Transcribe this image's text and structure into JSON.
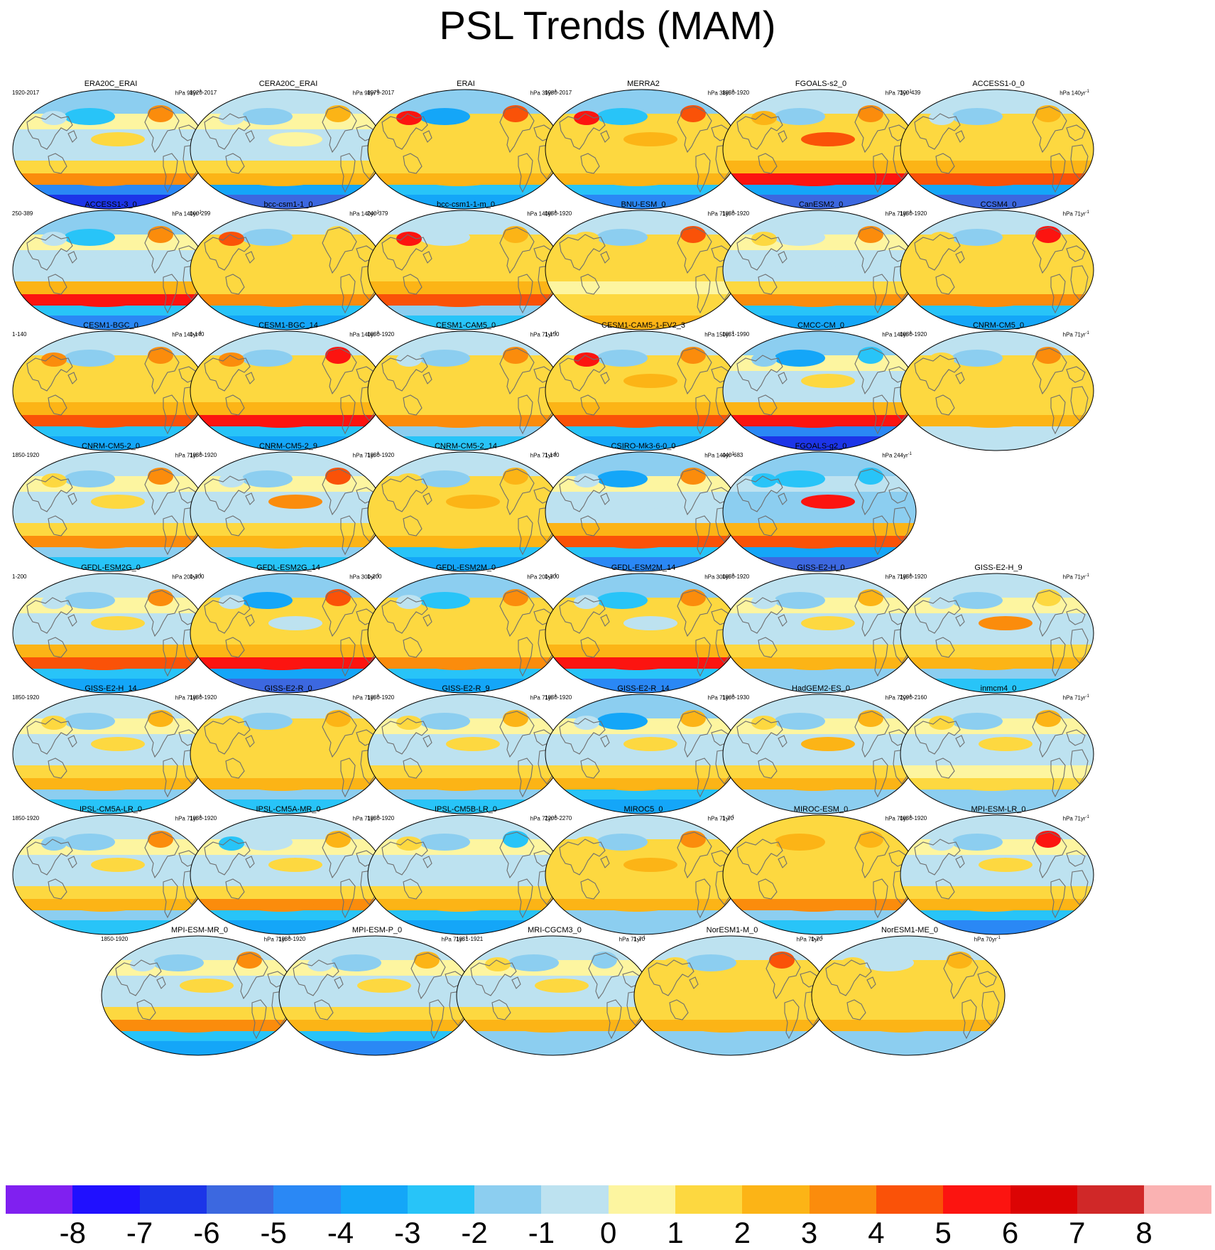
{
  "page": {
    "title": "PSL Trends (MAM)"
  },
  "colorbar": {
    "colors": [
      "#8020f0",
      "#2010ff",
      "#1c35e8",
      "#3c68e0",
      "#2a88f5",
      "#14a6f8",
      "#28c4f8",
      "#8ccef0",
      "#bde2f0",
      "#fdf5a0",
      "#fdd840",
      "#fcb416",
      "#fb8c0c",
      "#fa5208",
      "#fc1410",
      "#dc0404",
      "#d02828",
      "#fab2b2"
    ],
    "labels": [
      "-8",
      "-7",
      "-6",
      "-5",
      "-4",
      "-3",
      "-2",
      "-1",
      "0",
      "1",
      "2",
      "3",
      "4",
      "5",
      "6",
      "7",
      "8"
    ]
  },
  "chart_data": {
    "type": "map-panels",
    "title": "PSL Trends (MAM)",
    "variable": "PSL trend",
    "season": "MAM",
    "colorbar_levels": [
      -8,
      -7,
      -6,
      -5,
      -4,
      -3,
      -2,
      -1,
      0,
      1,
      2,
      3,
      4,
      5,
      6,
      7,
      8
    ],
    "panels": [
      {
        "name": "ERA20C_ERAI",
        "years": "1920-2017",
        "units": "hPa 98yr",
        "sam": -7,
        "sh": 3,
        "np": -3,
        "na": 3,
        "ea": -1,
        "ep": 1,
        "tr": -1
      },
      {
        "name": "CERA20C_ERAI",
        "years": "1920-2017",
        "units": "hPa 98yr",
        "sam": -6,
        "sh": 2,
        "np": -2,
        "na": 2,
        "ea": -1,
        "ep": 0,
        "tr": -1
      },
      {
        "name": "ERAI",
        "years": "1979-2017",
        "units": "hPa 39yr",
        "sam": -4,
        "sh": 2,
        "np": -4,
        "na": 4,
        "ea": 5,
        "ep": 1,
        "tr": 1
      },
      {
        "name": "MERRA2",
        "years": "1980-2017",
        "units": "hPa 38yr",
        "sam": -5,
        "sh": 2,
        "np": -3,
        "na": 4,
        "ea": 5,
        "ep": 2,
        "tr": 1
      },
      {
        "name": "FGOALS-s2_0",
        "years": "1850-1920",
        "units": "hPa 71yr",
        "sam": -6,
        "sh": 5,
        "np": -2,
        "na": 3,
        "ea": 2,
        "ep": 4,
        "tr": 1
      },
      {
        "name": "ACCESS1-0_0",
        "years": "300-439",
        "units": "hPa 140yr",
        "sam": -6,
        "sh": 4,
        "np": -2,
        "na": 2,
        "ea": -1,
        "ep": 1,
        "tr": 1
      },
      {
        "name": "ACCESS1-3_0",
        "years": "250-389",
        "units": "hPa 140yr",
        "sam": -5,
        "sh": 5,
        "np": -3,
        "na": 3,
        "ea": -1,
        "ep": -1,
        "tr": -1
      },
      {
        "name": "bcc-csm1-1_0",
        "years": "160-299",
        "units": "hPa 140yr",
        "sam": -4,
        "sh": 3,
        "np": -2,
        "na": 1,
        "ea": 4,
        "ep": 1,
        "tr": 1
      },
      {
        "name": "bcc-csm1-1-m_0",
        "years": "240-379",
        "units": "hPa 140yr",
        "sam": -3,
        "sh": 4,
        "np": -1,
        "na": 2,
        "ea": 5,
        "ep": 1,
        "tr": 1
      },
      {
        "name": "BNU-ESM_0",
        "years": "1850-1920",
        "units": "hPa 71yr",
        "sam": 2,
        "sh": 1,
        "np": -2,
        "na": 4,
        "ea": 1,
        "ep": 1,
        "tr": 1
      },
      {
        "name": "CanESM2_0",
        "years": "1850-1920",
        "units": "hPa 71yr",
        "sam": -4,
        "sh": 3,
        "np": -1,
        "na": 3,
        "ea": 1,
        "ep": -1,
        "tr": -1
      },
      {
        "name": "CCSM4_0",
        "years": "1850-1920",
        "units": "hPa 71yr",
        "sam": -4,
        "sh": 3,
        "np": -2,
        "na": 5,
        "ea": 1,
        "ep": 1,
        "tr": 1
      },
      {
        "name": "CESM1-BGC_0",
        "years": "1-140",
        "units": "hPa 140yr",
        "sam": -4,
        "sh": 4,
        "np": -2,
        "na": 3,
        "ea": 3,
        "ep": 1,
        "tr": 1
      },
      {
        "name": "CESM1-BGC_14",
        "years": "1-140",
        "units": "hPa 140yr",
        "sam": -4,
        "sh": 5,
        "np": -2,
        "na": 5,
        "ea": 3,
        "ep": 1,
        "tr": 1
      },
      {
        "name": "CESM1-CAM5_0",
        "years": "1850-1920",
        "units": "hPa 71yr",
        "sam": -3,
        "sh": 3,
        "np": -2,
        "na": 3,
        "ea": -1,
        "ep": 1,
        "tr": 1
      },
      {
        "name": "CESM1-CAM5-1-FV2_3",
        "years": "1-150",
        "units": "hPa 150yr",
        "sam": -4,
        "sh": 4,
        "np": -2,
        "na": 3,
        "ea": 5,
        "ep": 2,
        "tr": 1
      },
      {
        "name": "CMCC-CM_0",
        "years": "1851-1990",
        "units": "hPa 140yr",
        "sam": -7,
        "sh": 5,
        "np": -4,
        "na": -3,
        "ea": -2,
        "ep": 1,
        "tr": -1
      },
      {
        "name": "CNRM-CM5_0",
        "years": "1850-1920",
        "units": "hPa 71yr",
        "sam": -1,
        "sh": 2,
        "np": -2,
        "na": 3,
        "ea": 1,
        "ep": 1,
        "tr": 1
      },
      {
        "name": "CNRM-CM5-2_0",
        "years": "1850-1920",
        "units": "hPa 71yr",
        "sam": -3,
        "sh": 3,
        "np": -2,
        "na": 3,
        "ea": 1,
        "ep": 1,
        "tr": -1
      },
      {
        "name": "CNRM-CM5-2_9",
        "years": "1850-1920",
        "units": "hPa 71yr",
        "sam": -3,
        "sh": 2,
        "np": -2,
        "na": 4,
        "ea": -1,
        "ep": 3,
        "tr": -1
      },
      {
        "name": "CNRM-CM5-2_14",
        "years": "1850-1920",
        "units": "hPa 71yr",
        "sam": -4,
        "sh": 2,
        "np": -2,
        "na": 2,
        "ea": 1,
        "ep": 2,
        "tr": 1
      },
      {
        "name": "CSIRO-Mk3-6-0_0",
        "years": "1-140",
        "units": "hPa 140yr",
        "sam": -5,
        "sh": 4,
        "np": -4,
        "na": 3,
        "ea": -1,
        "ep": -1,
        "tr": -1
      },
      {
        "name": "FGOALS-g2_0",
        "years": "440-683",
        "units": "hPa 244yr",
        "sam": -6,
        "sh": 4,
        "np": -3,
        "na": -3,
        "ea": -3,
        "ep": 5,
        "tr": -2
      },
      {
        "name": "GFDL-ESM2G_0",
        "years": "1-200",
        "units": "hPa 200yr",
        "sam": -4,
        "sh": 4,
        "np": -2,
        "na": 3,
        "ea": -1,
        "ep": 1,
        "tr": -1
      },
      {
        "name": "GFDL-ESM2G_14",
        "years": "1-300",
        "units": "hPa 300yr",
        "sam": -6,
        "sh": 5,
        "np": -4,
        "na": 4,
        "ea": -1,
        "ep": -1,
        "tr": 1
      },
      {
        "name": "GFDL-ESM2M_0",
        "years": "1-200",
        "units": "hPa 200yr",
        "sam": -4,
        "sh": 3,
        "np": -3,
        "na": 3,
        "ea": -1,
        "ep": 1,
        "tr": 1
      },
      {
        "name": "GFDL-ESM2M_14",
        "years": "1-300",
        "units": "hPa 300yr",
        "sam": -5,
        "sh": 5,
        "np": -3,
        "na": 3,
        "ea": -1,
        "ep": -1,
        "tr": 1
      },
      {
        "name": "GISS-E2-H_0",
        "years": "1850-1920",
        "units": "hPa 71yr",
        "sam": -2,
        "sh": 2,
        "np": -2,
        "na": 2,
        "ea": -1,
        "ep": 1,
        "tr": -1
      },
      {
        "name": "GISS-E2-H_9",
        "years": "1850-1920",
        "units": "hPa 71yr",
        "sam": -3,
        "sh": 2,
        "np": -2,
        "na": 1,
        "ea": -1,
        "ep": 3,
        "tr": -1
      },
      {
        "name": "GISS-E2-H_14",
        "years": "1850-1920",
        "units": "hPa 71yr",
        "sam": -3,
        "sh": 2,
        "np": -2,
        "na": 2,
        "ea": 1,
        "ep": 1,
        "tr": -1
      },
      {
        "name": "GISS-E2-R_0",
        "years": "1850-1920",
        "units": "hPa 71yr",
        "sam": -3,
        "sh": 2,
        "np": -2,
        "na": 2,
        "ea": 1,
        "ep": 1,
        "tr": 1
      },
      {
        "name": "GISS-E2-R_9",
        "years": "1850-1920",
        "units": "hPa 71yr",
        "sam": -3,
        "sh": 2,
        "np": -2,
        "na": 2,
        "ea": 1,
        "ep": 1,
        "tr": -1
      },
      {
        "name": "GISS-E2-R_14",
        "years": "1850-1920",
        "units": "hPa 71yr",
        "sam": -4,
        "sh": 2,
        "np": -4,
        "na": 2,
        "ea": -1,
        "ep": 1,
        "tr": -1
      },
      {
        "name": "HadGEM2-ES_0",
        "years": "1860-1930",
        "units": "hPa 71yr",
        "sam": -2,
        "sh": 2,
        "np": -2,
        "na": 2,
        "ea": 1,
        "ep": 2,
        "tr": -1
      },
      {
        "name": "inmcm4_0",
        "years": "2090-2160",
        "units": "hPa 71yr",
        "sam": -2,
        "sh": 1,
        "np": -2,
        "na": 2,
        "ea": 1,
        "ep": 1,
        "tr": -1
      },
      {
        "name": "IPSL-CM5A-LR_0",
        "years": "1850-1920",
        "units": "hPa 71yr",
        "sam": -3,
        "sh": 2,
        "np": -2,
        "na": 3,
        "ea": -2,
        "ep": 1,
        "tr": -1
      },
      {
        "name": "IPSL-CM5A-MR_0",
        "years": "1850-1920",
        "units": "hPa 71yr",
        "sam": -4,
        "sh": 3,
        "np": -1,
        "na": 2,
        "ea": -3,
        "ep": 1,
        "tr": -1
      },
      {
        "name": "IPSL-CM5B-LR_0",
        "years": "1850-1920",
        "units": "hPa 71yr",
        "sam": -4,
        "sh": 2,
        "np": -2,
        "na": -3,
        "ea": 1,
        "ep": -1,
        "tr": -1
      },
      {
        "name": "MIROC5_0",
        "years": "2200-2270",
        "units": "hPa 71yr",
        "sam": -2,
        "sh": 2,
        "np": -2,
        "na": 3,
        "ea": 1,
        "ep": 2,
        "tr": 1
      },
      {
        "name": "MIROC-ESM_0",
        "years": "1-70",
        "units": "hPa 70yr",
        "sam": -3,
        "sh": 3,
        "np": 2,
        "na": 2,
        "ea": 1,
        "ep": 1,
        "tr": 1
      },
      {
        "name": "MPI-ESM-LR_0",
        "years": "1850-1920",
        "units": "hPa 71yr",
        "sam": -5,
        "sh": 2,
        "np": -2,
        "na": 5,
        "ea": -1,
        "ep": 1,
        "tr": -1
      },
      {
        "name": "MPI-ESM-MR_0",
        "years": "1850-1920",
        "units": "hPa 71yr",
        "sam": -4,
        "sh": 3,
        "np": -2,
        "na": 3,
        "ea": -1,
        "ep": 1,
        "tr": -1
      },
      {
        "name": "MPI-ESM-P_0",
        "years": "1850-1920",
        "units": "hPa 71yr",
        "sam": -5,
        "sh": 2,
        "np": -2,
        "na": 2,
        "ea": -1,
        "ep": 1,
        "tr": -1
      },
      {
        "name": "MRI-CGCM3_0",
        "years": "1851-1921",
        "units": "hPa 71yr",
        "sam": -2,
        "sh": 2,
        "np": -2,
        "na": -2,
        "ea": 1,
        "ep": 1,
        "tr": -1
      },
      {
        "name": "NorESM1-M_0",
        "years": "1-70",
        "units": "hPa 70yr",
        "sam": -2,
        "sh": 2,
        "np": -2,
        "na": 4,
        "ea": 1,
        "ep": 1,
        "tr": 1
      },
      {
        "name": "NorESM1-ME_0",
        "years": "1-70",
        "units": "hPa 70yr",
        "sam": -2,
        "sh": 2,
        "np": -1,
        "na": 2,
        "ea": 1,
        "ep": 1,
        "tr": 1
      }
    ]
  }
}
